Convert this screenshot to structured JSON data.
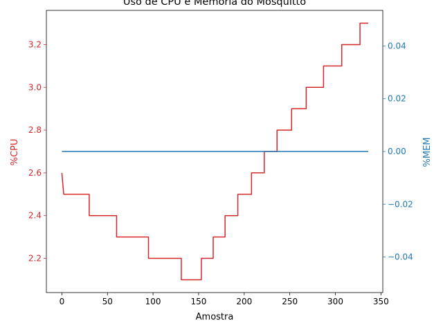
{
  "chart_data": {
    "type": "line",
    "title": "Uso de CPU e Memória do Mosquitto",
    "xlabel": "Amostra",
    "ylabel_left": "%CPU",
    "ylabel_right": "%MEM",
    "xlim": [
      -17,
      352
    ],
    "ylim_left": [
      2.04,
      3.36
    ],
    "ylim_right": [
      -0.0535,
      0.0535
    ],
    "x_ticks": [
      0,
      50,
      100,
      150,
      200,
      250,
      300,
      350
    ],
    "y_ticks_left": [
      2.2,
      2.4,
      2.6,
      2.8,
      3.0,
      3.2
    ],
    "y_ticks_left_labels": [
      "2.2",
      "2.4",
      "2.6",
      "2.8",
      "3.0",
      "3.2"
    ],
    "y_ticks_right": [
      -0.04,
      -0.02,
      0.0,
      0.02,
      0.04
    ],
    "y_ticks_right_labels": [
      "−0.04",
      "−0.02",
      "0.00",
      "0.02",
      "0.04"
    ],
    "grid": false,
    "colors": {
      "cpu": "#d62728",
      "mem": "#1f77b4"
    },
    "series": [
      {
        "axis": "left",
        "color": "#d62728",
        "x": [
          0,
          2,
          2,
          30,
          30,
          60,
          60,
          95,
          95,
          131,
          131,
          153,
          153,
          166,
          166,
          179,
          179,
          193,
          193,
          208,
          208,
          222,
          222,
          236,
          236,
          252,
          252,
          268,
          268,
          287,
          287,
          307,
          307,
          327,
          327,
          336
        ],
        "y": [
          2.6,
          2.5,
          2.5,
          2.5,
          2.4,
          2.4,
          2.3,
          2.3,
          2.2,
          2.2,
          2.1,
          2.1,
          2.2,
          2.2,
          2.3,
          2.3,
          2.4,
          2.4,
          2.5,
          2.5,
          2.6,
          2.6,
          2.7,
          2.7,
          2.8,
          2.8,
          2.9,
          2.9,
          3.0,
          3.0,
          3.1,
          3.1,
          3.2,
          3.2,
          3.3,
          3.3
        ]
      },
      {
        "axis": "right",
        "color": "#1f77b4",
        "x": [
          0,
          336
        ],
        "y": [
          0.0,
          0.0
        ]
      }
    ]
  }
}
